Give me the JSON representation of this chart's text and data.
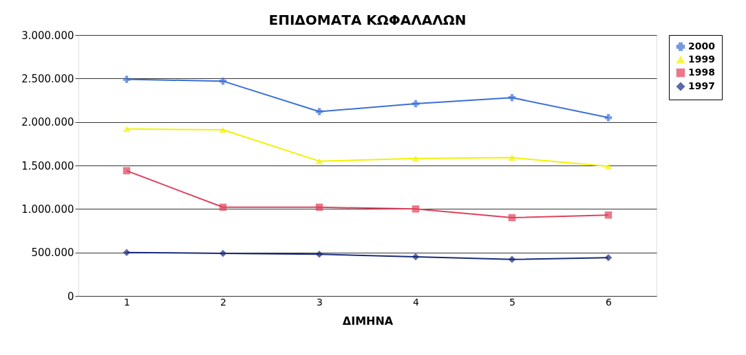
{
  "chart_data": {
    "type": "line",
    "title": "ΕΠΙΔΟΜΑΤΑ ΚΩΦΑΛΑΛΩΝ",
    "xlabel": "ΔΙΜΗΝΑ",
    "categories": [
      "1",
      "2",
      "3",
      "4",
      "5",
      "6"
    ],
    "series": [
      {
        "name": "2000",
        "color": "#3a6fd8",
        "marker": "cross",
        "values": [
          2490000,
          2470000,
          2120000,
          2210000,
          2280000,
          2050000
        ]
      },
      {
        "name": "1999",
        "color": "#f2f200",
        "marker": "triangle",
        "values": [
          1920000,
          1910000,
          1550000,
          1580000,
          1590000,
          1490000
        ]
      },
      {
        "name": "1998",
        "color": "#e0405a",
        "marker": "square",
        "values": [
          1440000,
          1020000,
          1020000,
          1000000,
          900000,
          930000
        ]
      },
      {
        "name": "1997",
        "color": "#1a2a7a",
        "marker": "diamond",
        "values": [
          500000,
          490000,
          480000,
          450000,
          420000,
          440000
        ]
      }
    ],
    "ylim": [
      0,
      3000000
    ],
    "yticks": [
      {
        "value": 0,
        "label": "0"
      },
      {
        "value": 500000,
        "label": "500.000"
      },
      {
        "value": 1000000,
        "label": "1.000.000"
      },
      {
        "value": 1500000,
        "label": "1.500.000"
      },
      {
        "value": 2000000,
        "label": "2.000.000"
      },
      {
        "value": 2500000,
        "label": "2.500.000"
      },
      {
        "value": 3000000,
        "label": "3.000.000"
      }
    ],
    "grid": "y",
    "legend": "right",
    "line_style": "solid"
  }
}
